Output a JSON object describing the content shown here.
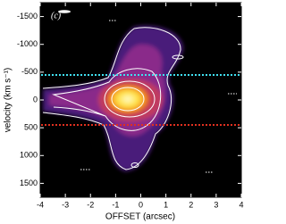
{
  "chart_data": {
    "type": "position-velocity",
    "panel_label": "(c)",
    "x_label": "OFFSET (arcsec)",
    "y_label": "velocity (km s⁻¹)",
    "xlim": [
      -4,
      4
    ],
    "xticks": [
      -4,
      -3,
      -2,
      -1,
      0,
      1,
      2,
      3,
      4
    ],
    "ylim": [
      -1750,
      1750
    ],
    "yticks": [
      -1500,
      -1000,
      -500,
      0,
      500,
      1000,
      1500
    ],
    "y_inverted": true,
    "hlines": [
      {
        "value": -450,
        "color": "#40e0f0"
      },
      {
        "value": 450,
        "color": "#e03020"
      }
    ]
  }
}
